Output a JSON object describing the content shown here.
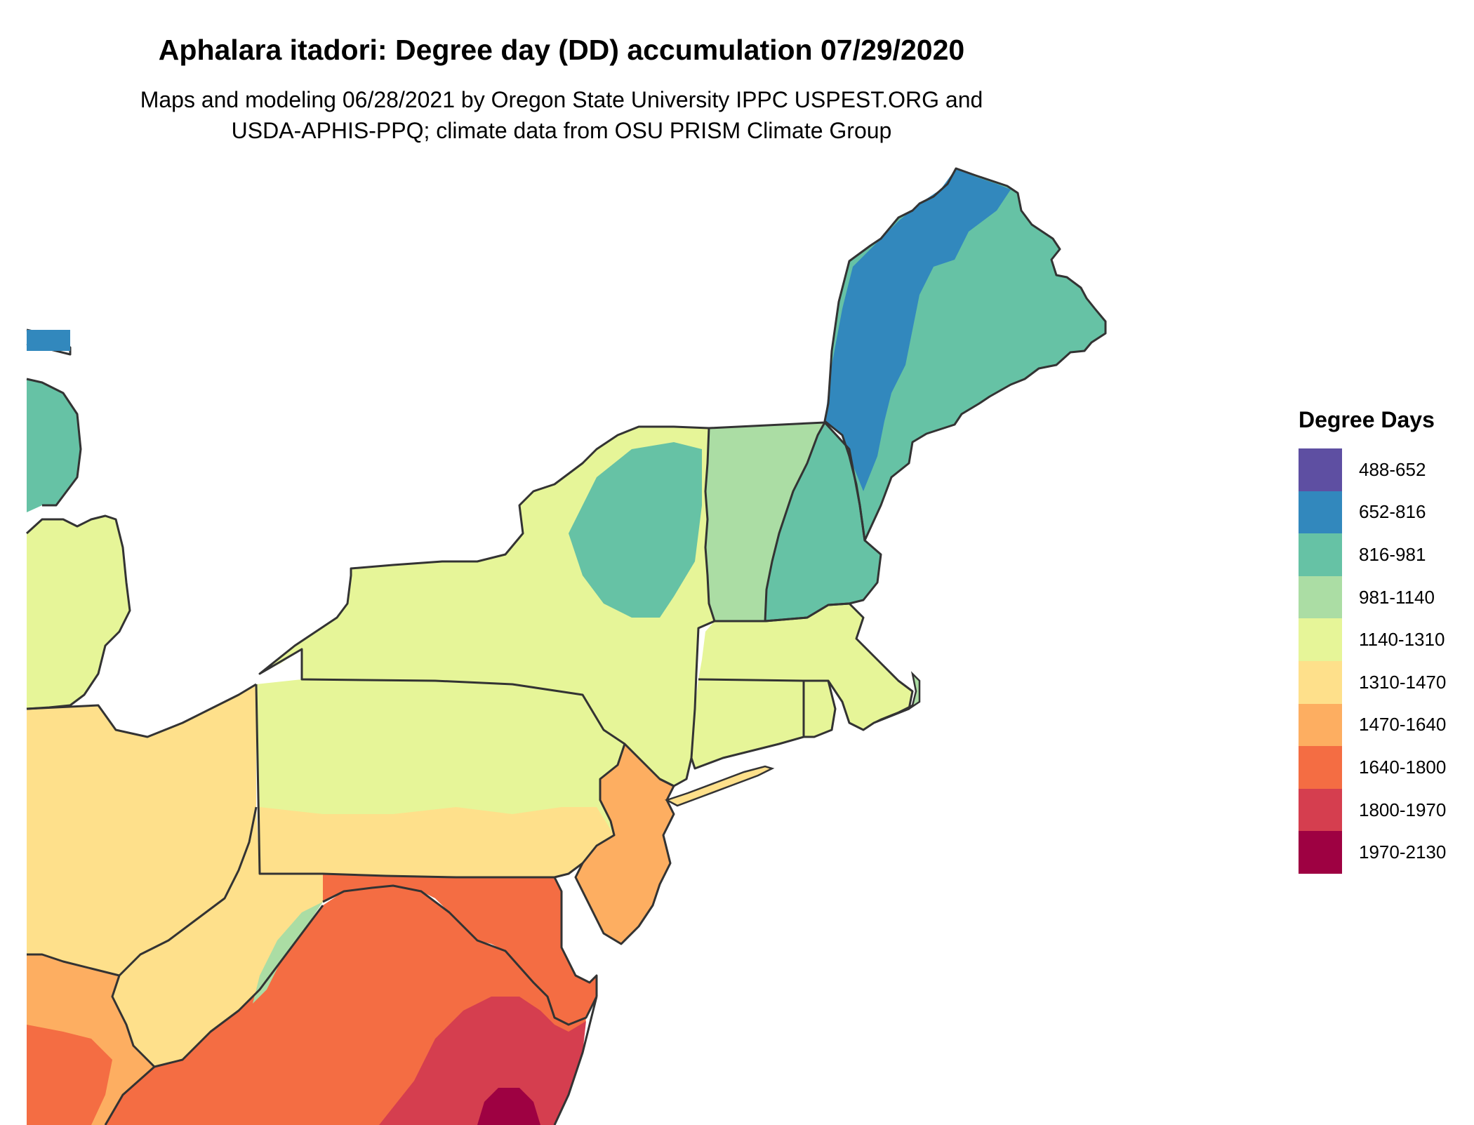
{
  "title": "Aphalara itadori: Degree day (DD) accumulation 07/29/2020",
  "subtitle_line1": "Maps and modeling 06/28/2021 by Oregon State University IPPC USPEST.ORG and",
  "subtitle_line2": "USDA-APHIS-PPQ; climate data from OSU PRISM Climate Group",
  "legend": {
    "title": "Degree Days",
    "items": [
      {
        "label": "488-652",
        "color": "#5E4FA2"
      },
      {
        "label": "652-816",
        "color": "#3288BD"
      },
      {
        "label": "816-981",
        "color": "#66C2A5"
      },
      {
        "label": "981-1140",
        "color": "#ABDDA4"
      },
      {
        "label": "1140-1310",
        "color": "#E6F598"
      },
      {
        "label": "1310-1470",
        "color": "#FEE08B"
      },
      {
        "label": "1470-1640",
        "color": "#FDAE61"
      },
      {
        "label": "1640-1800",
        "color": "#F46D43"
      },
      {
        "label": "1800-1970",
        "color": "#D53E4F"
      },
      {
        "label": "1970-2130",
        "color": "#9E0142"
      }
    ]
  }
}
